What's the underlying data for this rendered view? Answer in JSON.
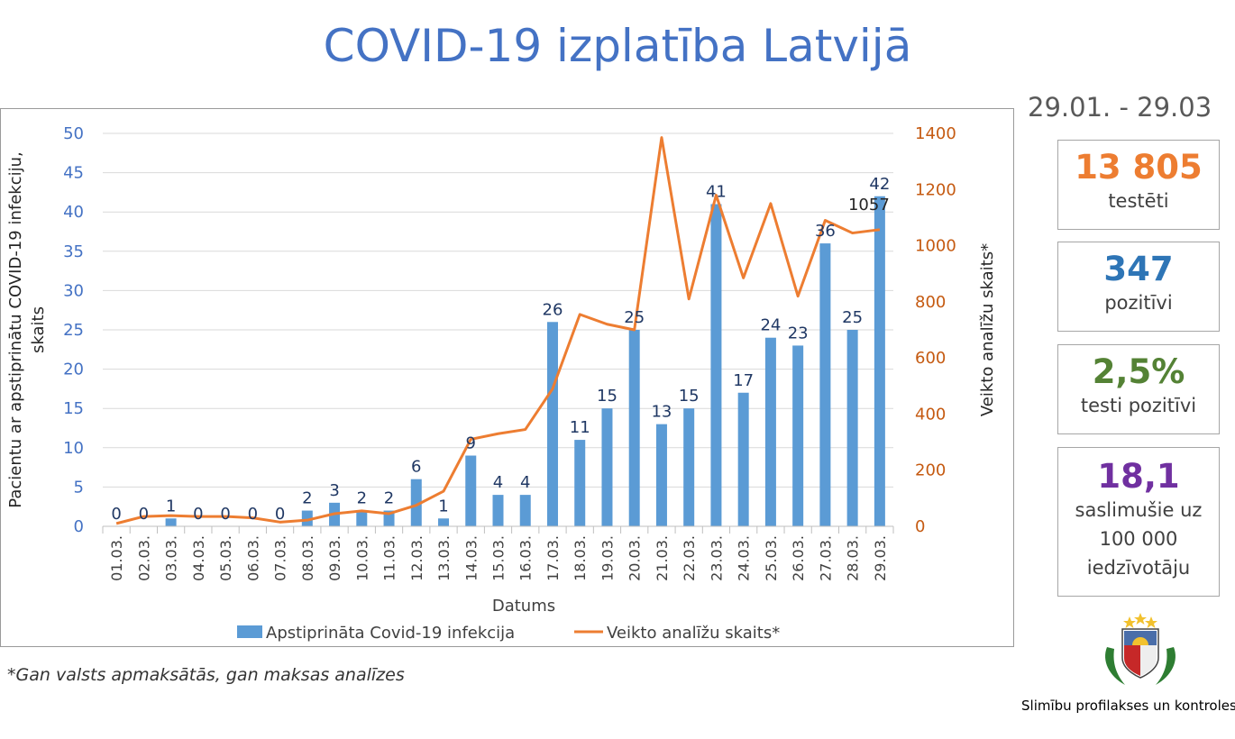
{
  "title": "COVID-19 izplatība Latvijā",
  "footnote": "*Gan valsts apmaksātās, gan maksas analīzes",
  "date_range": "29.01. - 29.03",
  "stats": [
    {
      "value": "13 805",
      "label": "testēti",
      "color": "#ed7d31"
    },
    {
      "value": "347",
      "label": "pozitīvi",
      "color": "#2e75b6"
    },
    {
      "value": "2,5%",
      "label": "testi pozitīvi",
      "color": "#548235"
    },
    {
      "value": "18,1",
      "label": "saslimušie uz 100 000 iedzīvotāju",
      "color": "#7030a0"
    }
  ],
  "org_name": "Slimību profilakses un kontroles ce",
  "chart_data": {
    "type": "bar+line",
    "categories": [
      "01.03.",
      "02.03.",
      "03.03.",
      "04.03.",
      "05.03.",
      "06.03.",
      "07.03.",
      "08.03.",
      "09.03.",
      "10.03.",
      "11.03.",
      "12.03.",
      "13.03.",
      "14.03.",
      "15.03.",
      "16.03.",
      "17.03.",
      "18.03.",
      "19.03.",
      "20.03.",
      "21.03.",
      "22.03.",
      "23.03.",
      "24.03.",
      "25.03.",
      "26.03.",
      "27.03.",
      "28.03.",
      "29.03."
    ],
    "series": [
      {
        "name": "Apstiprināta Covid-19 infekcija",
        "type": "bar",
        "axis": "left",
        "color": "#5b9bd5",
        "values": [
          0,
          0,
          1,
          0,
          0,
          0,
          0,
          2,
          3,
          2,
          2,
          6,
          1,
          9,
          4,
          4,
          26,
          11,
          15,
          25,
          13,
          15,
          41,
          17,
          24,
          23,
          36,
          25,
          42
        ]
      },
      {
        "name": "Veikto analīžu skaits*",
        "type": "line",
        "axis": "right",
        "color": "#ed7d31",
        "values": [
          10,
          35,
          38,
          35,
          35,
          30,
          15,
          22,
          45,
          55,
          45,
          75,
          125,
          310,
          330,
          345,
          490,
          755,
          720,
          700,
          1385,
          810,
          1180,
          885,
          1150,
          820,
          1090,
          1045,
          1057
        ]
      }
    ],
    "line_label": {
      "index": 28,
      "text": "1057"
    },
    "xlabel": "Datums",
    "ylabel_left": "Pacientu ar apstiprinātu  COVID-19 infekciju, skaits",
    "ylabel_right": "Veikto analīžu skaits*",
    "ylim_left": [
      0,
      50
    ],
    "ylim_right": [
      0,
      1400
    ],
    "yticks_left": [
      0,
      5,
      10,
      15,
      20,
      25,
      30,
      35,
      40,
      45,
      50
    ],
    "yticks_right": [
      0,
      200,
      400,
      600,
      800,
      1000,
      1200,
      1400
    ],
    "left_axis_color": "#4472c4",
    "right_axis_color": "#c55a11",
    "grid": true,
    "legend_position": "bottom"
  }
}
